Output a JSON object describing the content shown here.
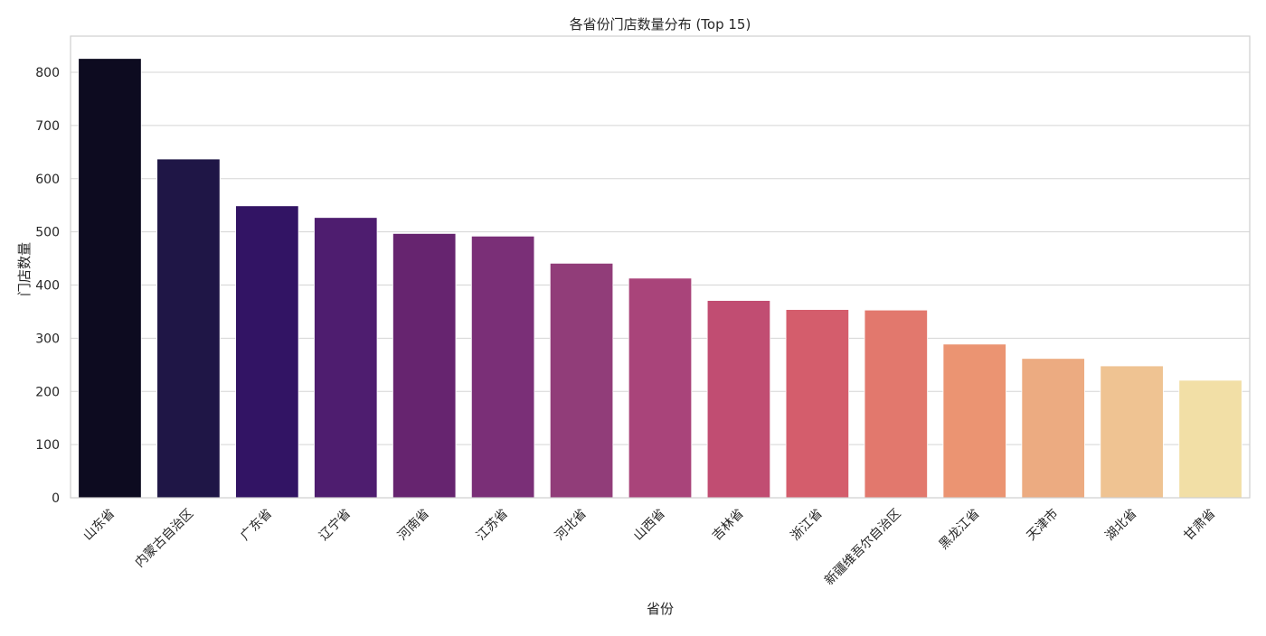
{
  "chart_data": {
    "type": "bar",
    "title": "各省份门店数量分布 (Top 15)",
    "xlabel": "省份",
    "ylabel": "门店数量",
    "categories": [
      "山东省",
      "内蒙古自治区",
      "广东省",
      "辽宁省",
      "河南省",
      "江苏省",
      "河北省",
      "山西省",
      "吉林省",
      "浙江省",
      "新疆维吾尔自治区",
      "黑龙江省",
      "天津市",
      "湖北省",
      "甘肃省"
    ],
    "values": [
      826,
      637,
      549,
      527,
      497,
      492,
      441,
      413,
      371,
      354,
      353,
      289,
      262,
      248,
      221
    ],
    "colors": [
      "#0d0b20",
      "#1f1646",
      "#321464",
      "#4e1d6f",
      "#66246f",
      "#7a2f77",
      "#913d79",
      "#a9447a",
      "#c14d72",
      "#d45d6c",
      "#e2786d",
      "#eb9472",
      "#ecab81",
      "#efc392",
      "#f2dfa6"
    ],
    "y_ticks": [
      "0",
      "100",
      "200",
      "300",
      "400",
      "500",
      "600",
      "700",
      "800"
    ],
    "ylim": [
      0,
      868
    ],
    "grid": true,
    "x_tick_rotation": 45
  }
}
